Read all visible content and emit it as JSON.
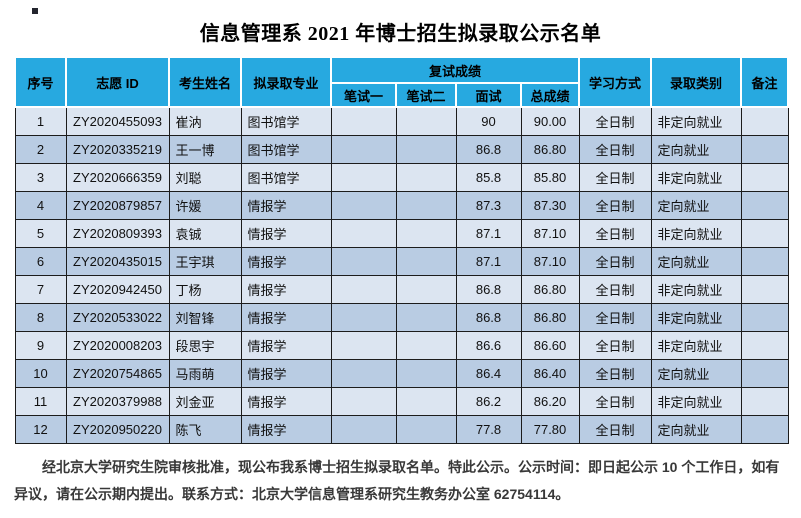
{
  "title": "信息管理系 2021 年博士招生拟录取公示名单",
  "colors": {
    "header_bg": "#27A9E0",
    "row_light": "#DCE5F1",
    "row_dark": "#B9CCE3",
    "grid_line": "#1C1C1C",
    "title_color": "#000000",
    "footer_color": "#383838"
  },
  "table": {
    "headers": {
      "seq": "序号",
      "application_id": "志愿 ID",
      "candidate_name": "考生姓名",
      "proposed_major": "拟录取专业",
      "reexam_group": "复试成绩",
      "written1": "笔试一",
      "written2": "笔试二",
      "interview": "面试",
      "total_score": "总成绩",
      "study_mode": "学习方式",
      "admission_category": "录取类别",
      "remarks": "备注"
    },
    "rows": [
      {
        "seq": "1",
        "id": "ZY2020455093",
        "name": "崔汭",
        "major": "图书馆学",
        "written1": "",
        "written2": "",
        "interview": "90",
        "total": "90.00",
        "mode": "全日制",
        "category": "非定向就业",
        "remark": ""
      },
      {
        "seq": "2",
        "id": "ZY2020335219",
        "name": "王一博",
        "major": "图书馆学",
        "written1": "",
        "written2": "",
        "interview": "86.8",
        "total": "86.80",
        "mode": "全日制",
        "category": "定向就业",
        "remark": ""
      },
      {
        "seq": "3",
        "id": "ZY2020666359",
        "name": "刘聪",
        "major": "图书馆学",
        "written1": "",
        "written2": "",
        "interview": "85.8",
        "total": "85.80",
        "mode": "全日制",
        "category": "非定向就业",
        "remark": ""
      },
      {
        "seq": "4",
        "id": "ZY2020879857",
        "name": "许媛",
        "major": "情报学",
        "written1": "",
        "written2": "",
        "interview": "87.3",
        "total": "87.30",
        "mode": "全日制",
        "category": "定向就业",
        "remark": ""
      },
      {
        "seq": "5",
        "id": "ZY2020809393",
        "name": "袁铖",
        "major": "情报学",
        "written1": "",
        "written2": "",
        "interview": "87.1",
        "total": "87.10",
        "mode": "全日制",
        "category": "非定向就业",
        "remark": ""
      },
      {
        "seq": "6",
        "id": "ZY2020435015",
        "name": "王宇琪",
        "major": "情报学",
        "written1": "",
        "written2": "",
        "interview": "87.1",
        "total": "87.10",
        "mode": "全日制",
        "category": "定向就业",
        "remark": ""
      },
      {
        "seq": "7",
        "id": "ZY2020942450",
        "name": "丁杨",
        "major": "情报学",
        "written1": "",
        "written2": "",
        "interview": "86.8",
        "total": "86.80",
        "mode": "全日制",
        "category": "非定向就业",
        "remark": ""
      },
      {
        "seq": "8",
        "id": "ZY2020533022",
        "name": "刘智锋",
        "major": "情报学",
        "written1": "",
        "written2": "",
        "interview": "86.8",
        "total": "86.80",
        "mode": "全日制",
        "category": "非定向就业",
        "remark": ""
      },
      {
        "seq": "9",
        "id": "ZY2020008203",
        "name": "段思宇",
        "major": "情报学",
        "written1": "",
        "written2": "",
        "interview": "86.6",
        "total": "86.60",
        "mode": "全日制",
        "category": "非定向就业",
        "remark": ""
      },
      {
        "seq": "10",
        "id": "ZY2020754865",
        "name": "马雨萌",
        "major": "情报学",
        "written1": "",
        "written2": "",
        "interview": "86.4",
        "total": "86.40",
        "mode": "全日制",
        "category": "定向就业",
        "remark": ""
      },
      {
        "seq": "11",
        "id": "ZY2020379988",
        "name": "刘金亚",
        "major": "情报学",
        "written1": "",
        "written2": "",
        "interview": "86.2",
        "total": "86.20",
        "mode": "全日制",
        "category": "非定向就业",
        "remark": ""
      },
      {
        "seq": "12",
        "id": "ZY2020950220",
        "name": "陈飞",
        "major": "情报学",
        "written1": "",
        "written2": "",
        "interview": "77.8",
        "total": "77.80",
        "mode": "全日制",
        "category": "定向就业",
        "remark": ""
      }
    ]
  },
  "footer": "经北京大学研究生院审核批准，现公布我系博士招生拟录取名单。特此公示。公示时间：即日起公示 10 个工作日，如有异议，请在公示期内提出。联系方式：北京大学信息管理系研究生教务办公室 62754114。"
}
